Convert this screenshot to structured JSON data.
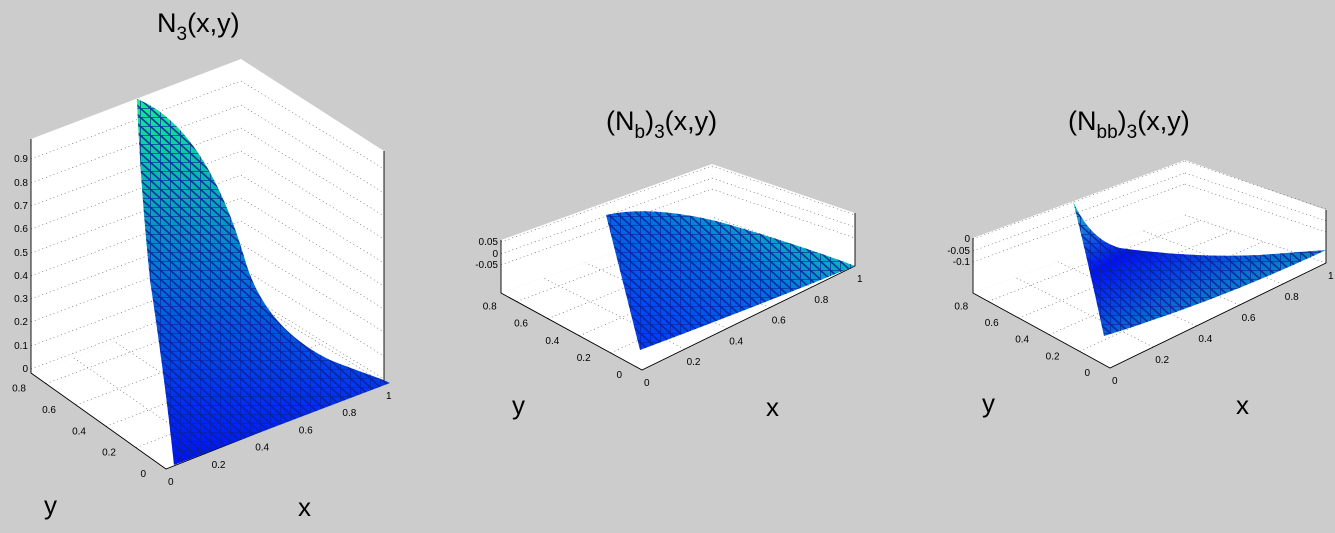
{
  "colors": {
    "background": "#cccccc",
    "pane": "#ffffff",
    "colormap_low": "#0000ff",
    "colormap_high": "#00ff80"
  },
  "chart_data": [
    {
      "type": "surface",
      "title_main": "N",
      "title_sub": "3",
      "title_tail": "(x,y)",
      "xlabel": "x",
      "ylabel": "y",
      "xlim": [
        0,
        1
      ],
      "ylim": [
        0,
        0.9
      ],
      "zlim": [
        0,
        1
      ],
      "xticks": [
        "0",
        "0.2",
        "0.4",
        "0.6",
        "0.8",
        "1"
      ],
      "yticks": [
        "0",
        "0.2",
        "0.4",
        "0.6",
        "0.8"
      ],
      "zticks": [
        "0",
        "0.1",
        "0.2",
        "0.3",
        "0.4",
        "0.5",
        "0.6",
        "0.7",
        "0.8",
        "0.9"
      ],
      "domain": "triangle with vertices (0,0), (1,0), (0,1)",
      "value_at_vertex_0_1": 1,
      "value_at_vertex_1_0": 0,
      "value_at_vertex_0_0": 0,
      "grid": true
    },
    {
      "type": "surface",
      "title_pre": "(N",
      "title_sub1": "b",
      "title_mid": ")",
      "title_sub2": "3",
      "title_tail": "(x,y)",
      "xlabel": "x",
      "ylabel": "y",
      "xlim": [
        0,
        1
      ],
      "ylim": [
        0,
        0.9
      ],
      "zlim": [
        -0.08,
        0.06
      ],
      "xticks": [
        "0",
        "0.2",
        "0.4",
        "0.6",
        "0.8",
        "1"
      ],
      "yticks": [
        "0",
        "0.2",
        "0.4",
        "0.6",
        "0.8"
      ],
      "zticks": [
        "0.05",
        "0",
        "-0.05"
      ],
      "domain": "triangle with vertices (0,0), (1,0), (0,1)",
      "grid": true
    },
    {
      "type": "surface",
      "title_pre": "(N",
      "title_sub1": "bb",
      "title_mid": ")",
      "title_sub2": "3",
      "title_tail": "(x,y)",
      "xlabel": "x",
      "ylabel": "y",
      "xlim": [
        0,
        1
      ],
      "ylim": [
        0,
        0.9
      ],
      "zlim": [
        -0.15,
        0.02
      ],
      "xticks": [
        "0",
        "0.2",
        "0.4",
        "0.6",
        "0.8",
        "1"
      ],
      "yticks": [
        "0",
        "0.2",
        "0.4",
        "0.6",
        "0.8"
      ],
      "zticks": [
        "0",
        "-0.05",
        "-0.1"
      ],
      "domain": "triangle with vertices (0,0), (1,0), (0,1)",
      "grid": true
    }
  ]
}
